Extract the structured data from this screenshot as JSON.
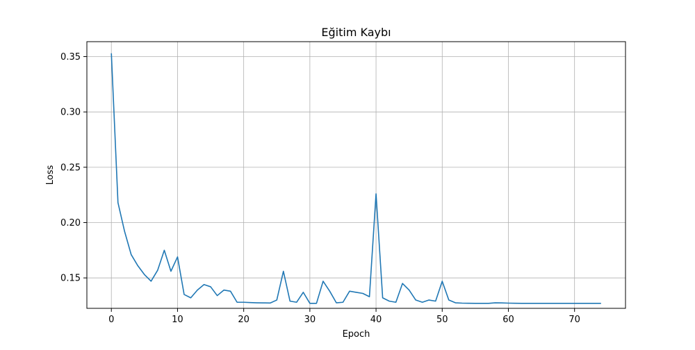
{
  "chart_data": {
    "type": "line",
    "title": "Eğitim Kaybı",
    "xlabel": "Epoch",
    "ylabel": "Loss",
    "xlim": [
      -3.7,
      77.7
    ],
    "ylim": [
      0.1225,
      0.3635
    ],
    "xticks": [
      0,
      10,
      20,
      30,
      40,
      50,
      60,
      70
    ],
    "yticks": [
      0.15,
      0.2,
      0.25,
      0.3,
      0.35
    ],
    "ytick_labels": [
      "0.15",
      "0.20",
      "0.25",
      "0.30",
      "0.35"
    ],
    "grid": true,
    "series": [
      {
        "color": "#1f77b4",
        "x": [
          0,
          1,
          2,
          3,
          4,
          5,
          6,
          7,
          8,
          9,
          10,
          11,
          12,
          13,
          14,
          15,
          16,
          17,
          18,
          19,
          20,
          21,
          22,
          23,
          24,
          25,
          26,
          27,
          28,
          29,
          30,
          31,
          32,
          33,
          34,
          35,
          36,
          37,
          38,
          39,
          40,
          41,
          42,
          43,
          44,
          45,
          46,
          47,
          48,
          49,
          50,
          51,
          52,
          53,
          54,
          55,
          56,
          57,
          58,
          59,
          60,
          61,
          62,
          63,
          64,
          65,
          66,
          67,
          68,
          69,
          70,
          71,
          72,
          73,
          74
        ],
        "values": [
          0.353,
          0.218,
          0.192,
          0.171,
          0.161,
          0.153,
          0.147,
          0.157,
          0.175,
          0.156,
          0.169,
          0.135,
          0.132,
          0.139,
          0.144,
          0.142,
          0.134,
          0.139,
          0.138,
          0.128,
          0.128,
          0.1277,
          0.1275,
          0.1274,
          0.1273,
          0.13,
          0.156,
          0.129,
          0.128,
          0.137,
          0.127,
          0.127,
          0.147,
          0.138,
          0.1275,
          0.128,
          0.138,
          0.137,
          0.136,
          0.133,
          0.226,
          0.132,
          0.129,
          0.128,
          0.145,
          0.139,
          0.13,
          0.128,
          0.13,
          0.129,
          0.147,
          0.13,
          0.1275,
          0.1272,
          0.1271,
          0.127,
          0.127,
          0.127,
          0.1275,
          0.1274,
          0.1272,
          0.1271,
          0.127,
          0.127,
          0.127,
          0.127,
          0.127,
          0.127,
          0.127,
          0.127,
          0.127,
          0.127,
          0.127,
          0.127,
          0.127
        ]
      }
    ]
  }
}
